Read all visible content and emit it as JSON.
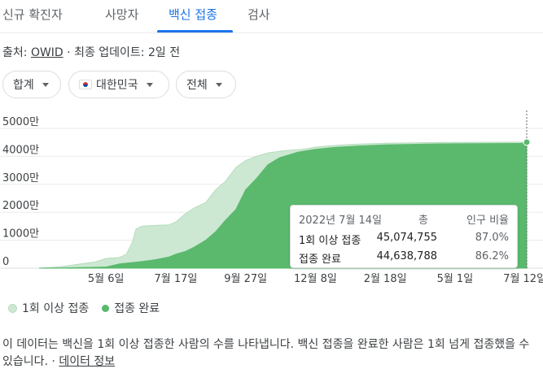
{
  "tabs": [
    {
      "label": "신규 확진자"
    },
    {
      "label": "사망자"
    },
    {
      "label": "백신 접종"
    },
    {
      "label": "검사"
    }
  ],
  "source": {
    "prefix": "출처:",
    "name": "OWID",
    "updated": "· 최종 업데이트: 2일 전"
  },
  "filters": {
    "metric": "합계",
    "country": "대한민국",
    "group": "전체"
  },
  "colors": {
    "one_dose": "#cde8d2",
    "fully": "#5ab96d",
    "tab_active": "#1a73e8"
  },
  "tooltip": {
    "date": "2022년 7월 14일",
    "col_total": "총",
    "col_pct": "인구 비율",
    "rows": [
      {
        "label": "1회 이상 접종",
        "total": "45,074,755",
        "pct": "87.0%"
      },
      {
        "label": "접종 완료",
        "total": "44,638,788",
        "pct": "86.2%"
      }
    ]
  },
  "chart_data": {
    "type": "area",
    "y_ticks": [
      {
        "value": 0,
        "label": "0"
      },
      {
        "value": 10000000,
        "label": "1000만"
      },
      {
        "value": 20000000,
        "label": "2000만"
      },
      {
        "value": 30000000,
        "label": "3000만"
      },
      {
        "value": 40000000,
        "label": "4000만"
      },
      {
        "value": 50000000,
        "label": "5000만"
      }
    ],
    "x_ticks": [
      {
        "date": "2021-05-06",
        "label": "5월 6일"
      },
      {
        "date": "2021-07-17",
        "label": "7월 17일"
      },
      {
        "date": "2021-09-27",
        "label": "9월 27일"
      },
      {
        "date": "2021-12-08",
        "label": "12월 8일"
      },
      {
        "date": "2022-02-18",
        "label": "2월 18일"
      },
      {
        "date": "2022-05-01",
        "label": "5월 1일"
      },
      {
        "date": "2022-07-12",
        "label": "7월 12일"
      }
    ],
    "xlim": [
      "2021-02-26",
      "2022-07-14"
    ],
    "ylim": [
      0,
      50000000
    ],
    "grid": true,
    "legend_position": "bottom-left",
    "series": [
      {
        "name": "1회 이상 접종",
        "points": [
          [
            "2021-02-26",
            0
          ],
          [
            "2021-03-20",
            500000
          ],
          [
            "2021-04-10",
            1500000
          ],
          [
            "2021-04-25",
            2200000
          ],
          [
            "2021-05-06",
            3500000
          ],
          [
            "2021-05-20",
            3800000
          ],
          [
            "2021-05-27",
            5000000
          ],
          [
            "2021-06-02",
            9000000
          ],
          [
            "2021-06-06",
            14000000
          ],
          [
            "2021-06-12",
            15000000
          ],
          [
            "2021-06-25",
            15300000
          ],
          [
            "2021-07-10",
            15500000
          ],
          [
            "2021-07-17",
            16500000
          ],
          [
            "2021-07-27",
            19500000
          ],
          [
            "2021-08-05",
            21500000
          ],
          [
            "2021-08-17",
            23500000
          ],
          [
            "2021-08-27",
            28000000
          ],
          [
            "2021-09-06",
            31000000
          ],
          [
            "2021-09-17",
            36000000
          ],
          [
            "2021-09-27",
            38500000
          ],
          [
            "2021-10-08",
            40000000
          ],
          [
            "2021-10-20",
            41200000
          ],
          [
            "2021-11-05",
            42000000
          ],
          [
            "2021-11-25",
            42500000
          ],
          [
            "2021-12-08",
            43300000
          ],
          [
            "2021-12-28",
            43900000
          ],
          [
            "2022-01-15",
            44300000
          ],
          [
            "2022-02-18",
            44700000
          ],
          [
            "2022-04-01",
            44900000
          ],
          [
            "2022-05-01",
            45000000
          ],
          [
            "2022-07-14",
            45074755
          ]
        ]
      },
      {
        "name": "접종 완료",
        "points": [
          [
            "2021-02-26",
            0
          ],
          [
            "2021-03-20",
            100000
          ],
          [
            "2021-04-10",
            200000
          ],
          [
            "2021-05-06",
            400000
          ],
          [
            "2021-05-20",
            1500000
          ],
          [
            "2021-06-10",
            2300000
          ],
          [
            "2021-06-25",
            3000000
          ],
          [
            "2021-07-10",
            4000000
          ],
          [
            "2021-07-17",
            5000000
          ],
          [
            "2021-07-27",
            6000000
          ],
          [
            "2021-08-05",
            7500000
          ],
          [
            "2021-08-17",
            10000000
          ],
          [
            "2021-08-27",
            13000000
          ],
          [
            "2021-09-06",
            17000000
          ],
          [
            "2021-09-17",
            21000000
          ],
          [
            "2021-09-27",
            28000000
          ],
          [
            "2021-10-08",
            32000000
          ],
          [
            "2021-10-20",
            37000000
          ],
          [
            "2021-11-01",
            39500000
          ],
          [
            "2021-11-20",
            41500000
          ],
          [
            "2021-12-08",
            42500000
          ],
          [
            "2021-12-28",
            43200000
          ],
          [
            "2022-01-20",
            43700000
          ],
          [
            "2022-02-18",
            44100000
          ],
          [
            "2022-04-01",
            44400000
          ],
          [
            "2022-05-01",
            44500000
          ],
          [
            "2022-07-14",
            44638788
          ]
        ]
      }
    ]
  },
  "legend": [
    {
      "label": "1회 이상 접종"
    },
    {
      "label": "접종 완료"
    }
  ],
  "note": {
    "text": "이 데이터는 백신을 1회 이상 접종한 사람의 수를 나타냅니다. 백신 접종을 완료한 사람은 1회 넘게 접종했을 수 있습니다. ·",
    "link": "데이터 정보"
  }
}
